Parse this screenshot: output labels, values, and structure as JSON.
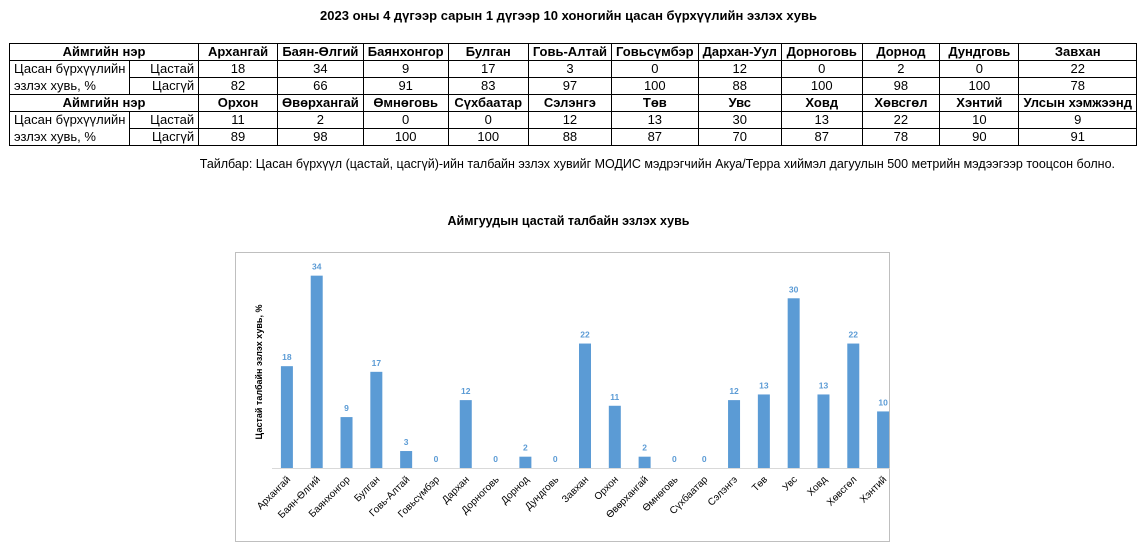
{
  "title": "2023 оны 4 дүгээр сарын 1 дүгээр 10 хоногийн цасан бүрхүүлийн эзлэх хувь",
  "table": {
    "header_label": "Аймгийн нэр",
    "row_label_line1": "Цасан бүрхүүлийн",
    "row_label_line2": "эзлэх хувь, %",
    "sub_snow": "Цастай",
    "sub_nosnow": "Цасгүй",
    "block1": {
      "names": [
        "Архангай",
        "Баян-Өлгий",
        "Баянхонгор",
        "Булган",
        "Говь-Алтай",
        "Говьсүмбэр",
        "Дархан-Уул",
        "Дорноговь",
        "Дорнод",
        "Дундговь",
        "Завхан"
      ],
      "snow": [
        "18",
        "34",
        "9",
        "17",
        "3",
        "0",
        "12",
        "0",
        "2",
        "0",
        "22"
      ],
      "nosnow": [
        "82",
        "66",
        "91",
        "83",
        "97",
        "100",
        "88",
        "100",
        "98",
        "100",
        "78"
      ]
    },
    "block2": {
      "names": [
        "Орхон",
        "Өвөрхангай",
        "Өмнөговь",
        "Сүхбаатар",
        "Сэлэнгэ",
        "Төв",
        "Увс",
        "Ховд",
        "Хөвсгөл",
        "Хэнтий",
        "Улсын хэмжээнд"
      ],
      "snow": [
        "11",
        "2",
        "0",
        "0",
        "12",
        "13",
        "30",
        "13",
        "22",
        "10",
        "9"
      ],
      "nosnow": [
        "89",
        "98",
        "100",
        "100",
        "88",
        "87",
        "70",
        "87",
        "78",
        "90",
        "91"
      ]
    }
  },
  "note": "Тайлбар: Цасан бүрхүүл (цастай, цасгүй)-ийн талбайн эзлэх хувийг МОДИС мэдрэгчийн Акуа/Терра хиймэл дагуулын 500 метрийн мэдээгээр тооцсон болно.",
  "colors": {
    "bar": "#5B9BD5",
    "label": "#5B9BD5"
  },
  "chart_data": {
    "type": "bar",
    "title": "Аймгуудын цастай талбайн эзлэх хувь",
    "ylabel": "Цастай талбайн эзлэх хувь, %",
    "xlabel": "",
    "categories": [
      "Архангай",
      "Баян-Өлгий",
      "Баянхонгор",
      "Булган",
      "Говь-Алтай",
      "Говьсүмбэр",
      "Дархан",
      "Дорноговь",
      "Дорнод",
      "Дундговь",
      "Завхан",
      "Орхон",
      "Өвөрхангай",
      "Өмнөговь",
      "Сүхбаатар",
      "Сэлэнгэ",
      "Төв",
      "Увс",
      "Ховд",
      "Хөвсгөл",
      "Хэнтий"
    ],
    "values": [
      18,
      34,
      9,
      17,
      3,
      0,
      12,
      0,
      2,
      0,
      22,
      11,
      2,
      0,
      0,
      12,
      13,
      30,
      13,
      22,
      10
    ],
    "ylim": [
      0,
      35
    ],
    "grid": false,
    "legend": "none"
  }
}
